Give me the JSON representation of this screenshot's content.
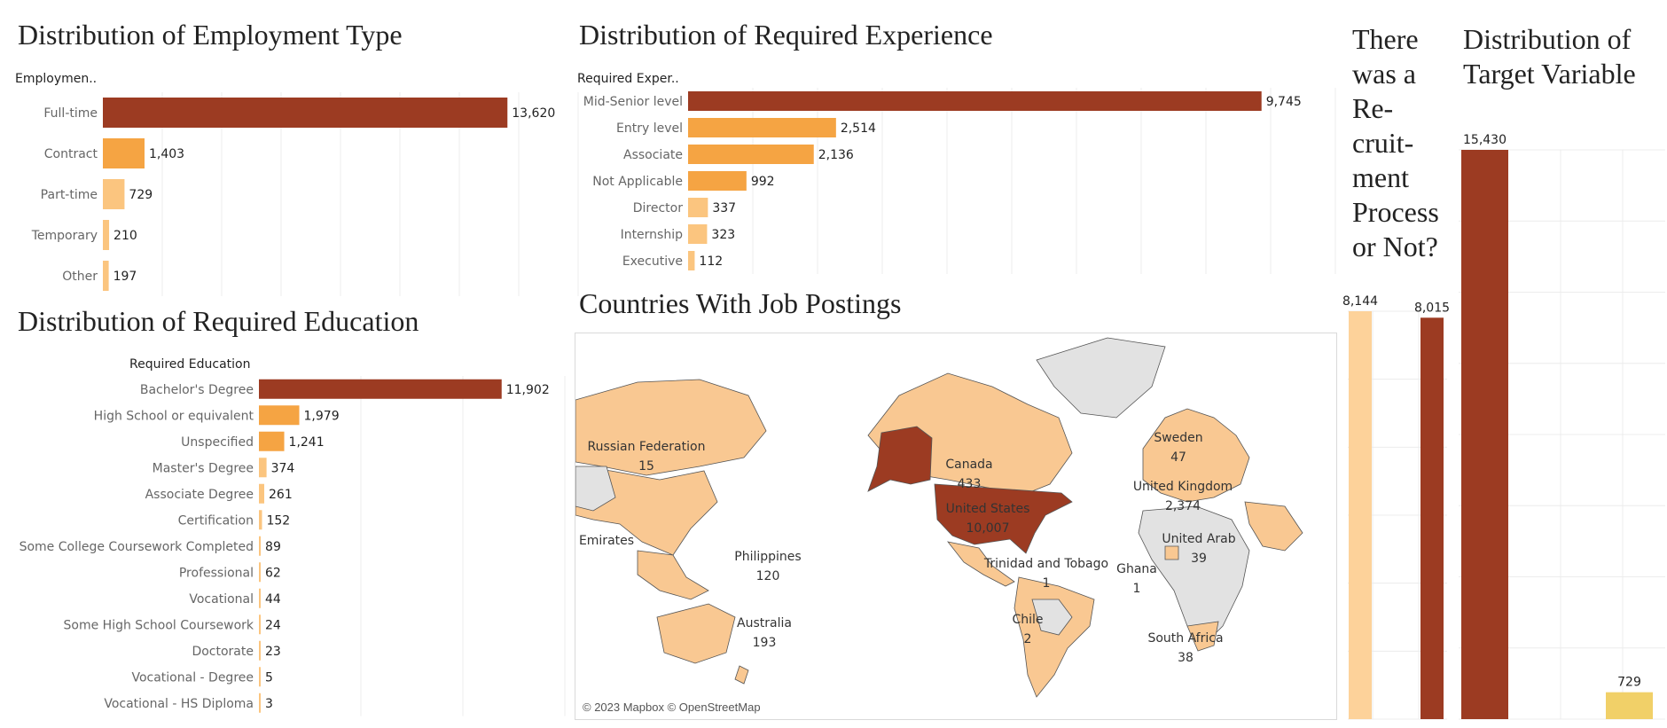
{
  "colors": {
    "dark": "#9c3b22",
    "mid": "#f5a443",
    "light": "#fbc57f",
    "lighter": "#fdd29a",
    "yellow": "#f1d068",
    "land": "#f9c892",
    "gray_land": "#e2e2e2",
    "border": "#555555"
  },
  "employment": {
    "title": "Distribution of Employment Type",
    "field": "Employmen..",
    "chart_data": {
      "type": "bar",
      "orientation": "horizontal",
      "categories": [
        "Full-time",
        "Contract",
        "Part-time",
        "Temporary",
        "Other"
      ],
      "values": [
        13620,
        1403,
        729,
        210,
        197
      ],
      "value_labels": [
        "13,620",
        "1,403",
        "729",
        "210",
        "197"
      ],
      "xlim": [
        0,
        16000
      ]
    }
  },
  "experience": {
    "title": "Distribution of Required Experience",
    "field": "Required Exper..",
    "chart_data": {
      "type": "bar",
      "orientation": "horizontal",
      "categories": [
        "Mid-Senior level",
        "Entry level",
        "Associate",
        "Not Applicable",
        "Director",
        "Internship",
        "Executive"
      ],
      "values": [
        9745,
        2514,
        2136,
        992,
        337,
        323,
        112
      ],
      "value_labels": [
        "9,745",
        "2,514",
        "2,136",
        "992",
        "337",
        "323",
        "112"
      ],
      "xlim": [
        0,
        11000
      ]
    }
  },
  "education": {
    "title": "Distribution of Required Education",
    "field": "Required Education",
    "chart_data": {
      "type": "bar",
      "orientation": "horizontal",
      "categories": [
        "Bachelor's Degree",
        "High School or equivalent",
        "Unspecified",
        "Master's Degree",
        "Associate Degree",
        "Certification",
        "Some College Coursework Completed",
        "Professional",
        "Vocational",
        "Some High School Coursework",
        "Doctorate",
        "Vocational - Degree",
        "Vocational - HS Diploma"
      ],
      "values": [
        11902,
        1979,
        1241,
        374,
        261,
        152,
        89,
        62,
        44,
        24,
        23,
        5,
        3
      ],
      "value_labels": [
        "11,902",
        "1,979",
        "1,241",
        "374",
        "261",
        "152",
        "89",
        "62",
        "44",
        "24",
        "23",
        "5",
        "3"
      ],
      "xlim": [
        0,
        15000
      ]
    }
  },
  "countries": {
    "title": "Countries With Job Postings",
    "attribution": "© 2023 Mapbox © OpenStreetMap",
    "labels": [
      {
        "name": "Russian Federation",
        "value": "15"
      },
      {
        "name": "Canada",
        "value": "433"
      },
      {
        "name": "Sweden",
        "value": "47"
      },
      {
        "name": "United Kingdom",
        "value": "2,374"
      },
      {
        "name": "United States",
        "value": "10,007"
      },
      {
        "name": "Emirates",
        "value": ""
      },
      {
        "name": "Philippines",
        "value": "120"
      },
      {
        "name": "Trinidad and Tobago",
        "value": "1"
      },
      {
        "name": "Ghana",
        "value": "1"
      },
      {
        "name": "United Arab",
        "value": "39"
      },
      {
        "name": "Australia",
        "value": "193"
      },
      {
        "name": "Chile",
        "value": "2"
      },
      {
        "name": "South Africa",
        "value": "38"
      }
    ]
  },
  "recruitment": {
    "title_lines": [
      "There",
      "was a",
      "Re-",
      "cruit-",
      "ment",
      "Process",
      "or Not?"
    ],
    "chart_data": {
      "type": "bar",
      "values": [
        8144,
        8015
      ],
      "value_labels": [
        "8,144",
        "8,015"
      ],
      "ylim": [
        0,
        8144
      ]
    }
  },
  "target": {
    "title_lines": [
      "Distribution of",
      "Target Variable"
    ],
    "chart_data": {
      "type": "bar",
      "values": [
        15430,
        729
      ],
      "value_labels": [
        "15,430",
        "729"
      ],
      "ylim": [
        0,
        15430
      ]
    }
  }
}
